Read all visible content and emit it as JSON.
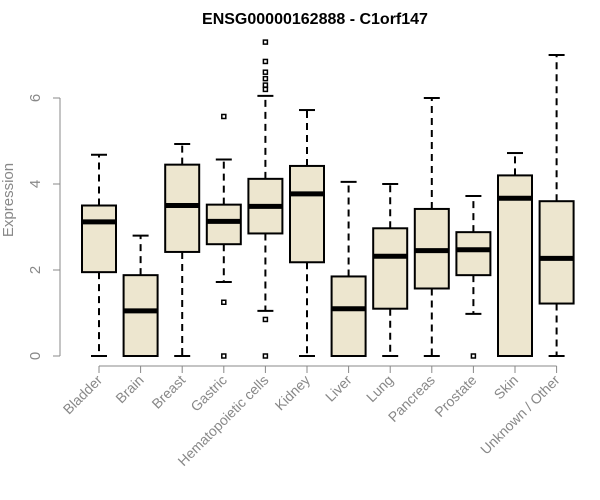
{
  "chart_data": {
    "type": "boxplot",
    "title": "ENSG00000162888 - C1orf147",
    "xlabel": "",
    "ylabel": "Expression",
    "ylim": [
      0,
      7.3
    ],
    "yticks": [
      0,
      2,
      4,
      6
    ],
    "box_color": "#ede6cf",
    "categories": [
      "Bladder",
      "Brain",
      "Breast",
      "Gastric",
      "Hematopoietic cells",
      "Kidney",
      "Liver",
      "Lung",
      "Pancreas",
      "Prostate",
      "Skin",
      "Unknown / Other"
    ],
    "series": [
      {
        "name": "Bladder",
        "min": 0,
        "q1": 1.95,
        "median": 3.12,
        "q3": 3.5,
        "max": 4.68,
        "outliers": []
      },
      {
        "name": "Brain",
        "min": 0,
        "q1": 0,
        "median": 1.05,
        "q3": 1.88,
        "max": 2.8,
        "outliers": []
      },
      {
        "name": "Breast",
        "min": 0,
        "q1": 2.42,
        "median": 3.5,
        "q3": 4.45,
        "max": 4.93,
        "outliers": []
      },
      {
        "name": "Gastric",
        "min": 1.72,
        "q1": 2.6,
        "median": 3.13,
        "q3": 3.52,
        "max": 4.57,
        "outliers": [
          5.57,
          1.25,
          0
        ]
      },
      {
        "name": "Hematopoietic cells",
        "min": 1.05,
        "q1": 2.85,
        "median": 3.48,
        "q3": 4.12,
        "max": 6.05,
        "outliers": [
          7.3,
          6.85,
          6.6,
          6.45,
          6.3,
          6.2,
          0.85,
          0
        ]
      },
      {
        "name": "Kidney",
        "min": 0,
        "q1": 2.18,
        "median": 3.77,
        "q3": 4.42,
        "max": 5.72,
        "outliers": []
      },
      {
        "name": "Liver",
        "min": 0,
        "q1": 0,
        "median": 1.1,
        "q3": 1.85,
        "max": 4.05,
        "outliers": []
      },
      {
        "name": "Lung",
        "min": 0,
        "q1": 1.1,
        "median": 2.32,
        "q3": 2.97,
        "max": 4.0,
        "outliers": []
      },
      {
        "name": "Pancreas",
        "min": 0,
        "q1": 1.57,
        "median": 2.45,
        "q3": 3.42,
        "max": 6.0,
        "outliers": []
      },
      {
        "name": "Prostate",
        "min": 0.98,
        "q1": 1.88,
        "median": 2.47,
        "q3": 2.88,
        "max": 3.72,
        "outliers": [
          0
        ]
      },
      {
        "name": "Skin",
        "min": 0,
        "q1": 0,
        "median": 3.67,
        "q3": 4.2,
        "max": 4.72,
        "outliers": []
      },
      {
        "name": "Unknown / Other",
        "min": 0,
        "q1": 1.22,
        "median": 2.27,
        "q3": 3.6,
        "max": 7.0,
        "outliers": []
      }
    ]
  }
}
